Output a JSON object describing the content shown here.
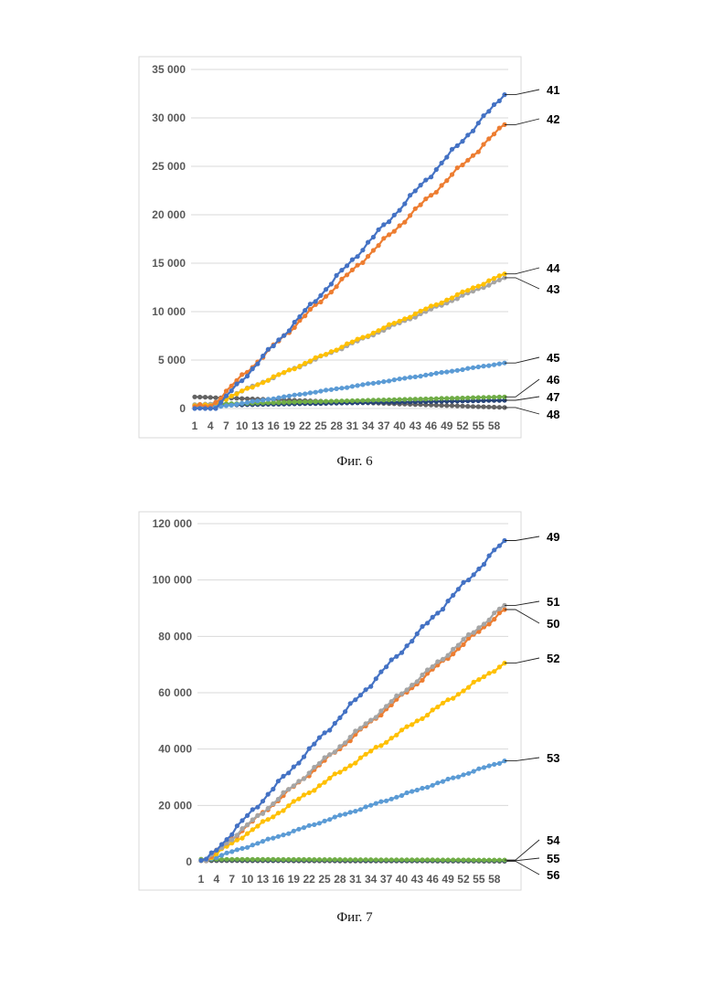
{
  "figures": [
    {
      "caption": "Фиг. 6",
      "chart_data": {
        "type": "line",
        "title": "",
        "xlabel": "",
        "ylabel": "",
        "x": {
          "start": 1,
          "end": 60
        },
        "x_tick_labels": [
          "1",
          "4",
          "7",
          "10",
          "13",
          "16",
          "19",
          "22",
          "25",
          "28",
          "31",
          "34",
          "37",
          "40",
          "43",
          "46",
          "49",
          "52",
          "55",
          "58"
        ],
        "y_tick_labels": [
          "0",
          "5 000",
          "10 000",
          "15 000",
          "20 000",
          "25 000",
          "30 000",
          "35 000"
        ],
        "ylim": [
          0,
          35000
        ],
        "grid": "horizontal",
        "series": [
          {
            "name": "41",
            "color": "#4472C4",
            "start": 0,
            "end": 32400,
            "flat_until": 5
          },
          {
            "name": "42",
            "color": "#ED7D31",
            "start": 200,
            "end": 29300,
            "flat_until": 4
          },
          {
            "name": "44",
            "color": "#FFC000",
            "start": 300,
            "end": 13900,
            "flat_until": 4
          },
          {
            "name": "43",
            "color": "#A5A5A5",
            "start": 400,
            "end": 13500,
            "flat_until": 4
          },
          {
            "name": "45",
            "color": "#5B9BD5",
            "start": 200,
            "end": 4700,
            "flat_until": 6
          },
          {
            "name": "46",
            "color": "#70AD47",
            "start": 400,
            "end": 1200,
            "flat_until": 1
          },
          {
            "name": "47",
            "color": "#264478",
            "start": 300,
            "end": 850,
            "flat_until": 1
          },
          {
            "name": "48",
            "color": "#636363",
            "start": 1200,
            "end": 100,
            "flat_until": 1
          }
        ]
      }
    },
    {
      "caption": "Фиг. 7",
      "chart_data": {
        "type": "line",
        "title": "",
        "xlabel": "",
        "ylabel": "",
        "x": {
          "start": 1,
          "end": 60
        },
        "x_tick_labels": [
          "1",
          "4",
          "7",
          "10",
          "13",
          "16",
          "19",
          "22",
          "25",
          "28",
          "31",
          "34",
          "37",
          "40",
          "43",
          "46",
          "49",
          "52",
          "55",
          "58"
        ],
        "y_tick_labels": [
          "0",
          "20 000",
          "40 000",
          "60 000",
          "80 000",
          "100 000",
          "120 000"
        ],
        "ylim": [
          0,
          120000
        ],
        "grid": "horizontal",
        "series": [
          {
            "name": "49",
            "color": "#4472C4",
            "start": 500,
            "end": 114000,
            "flat_until": 2
          },
          {
            "name": "51",
            "color": "#A5A5A5",
            "start": 500,
            "end": 91000,
            "flat_until": 2
          },
          {
            "name": "50",
            "color": "#ED7D31",
            "start": 500,
            "end": 89500,
            "flat_until": 2
          },
          {
            "name": "52",
            "color": "#FFC000",
            "start": 500,
            "end": 70500,
            "flat_until": 2
          },
          {
            "name": "53",
            "color": "#5B9BD5",
            "start": 500,
            "end": 35800,
            "flat_until": 2
          },
          {
            "name": "54",
            "color": "#70AD47",
            "start": 900,
            "end": 600,
            "flat_until": 1
          },
          {
            "name": "55",
            "color": "#264478",
            "start": 700,
            "end": 400,
            "flat_until": 1
          },
          {
            "name": "56",
            "color": "#636363",
            "start": 400,
            "end": 200,
            "flat_until": 1
          }
        ]
      }
    }
  ]
}
